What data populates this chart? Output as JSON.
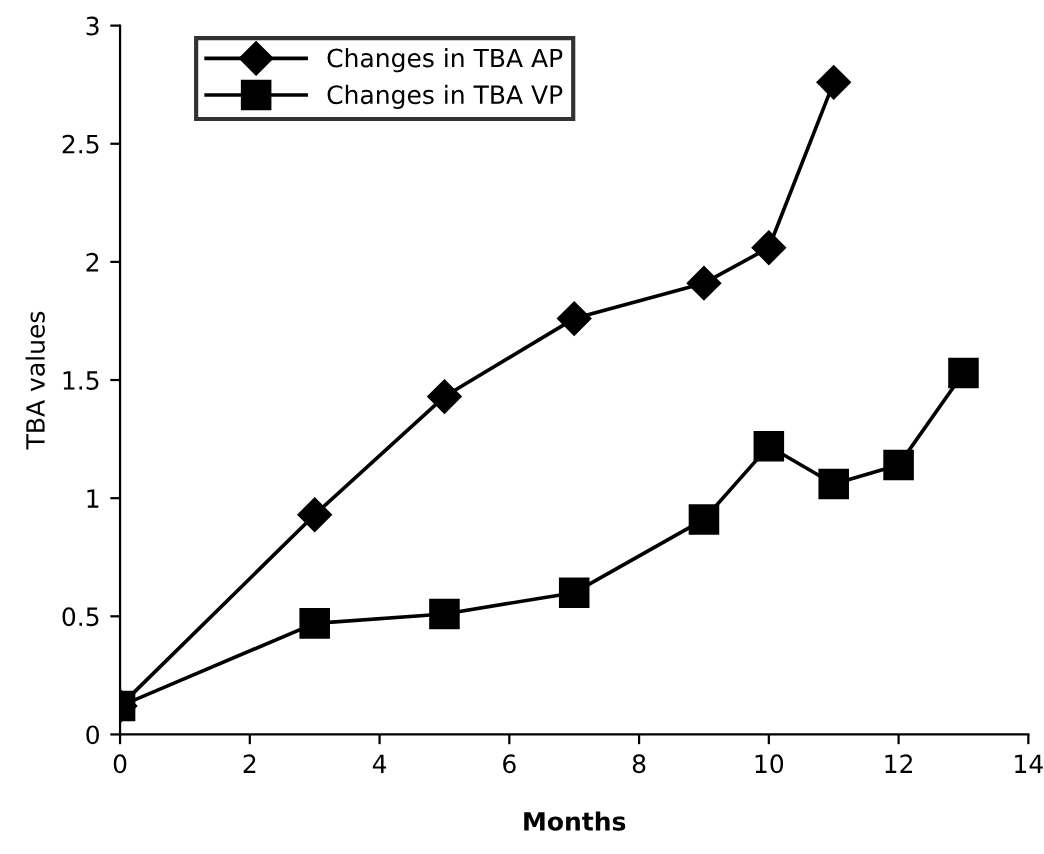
{
  "chart_data": {
    "type": "line",
    "xlabel": "Months",
    "ylabel": "TBA values",
    "series": [
      {
        "name": "Changes in TBA AP",
        "color": "#000000",
        "marker": "diamond",
        "x": [
          0,
          3,
          5,
          7,
          9,
          10,
          11
        ],
        "values": [
          0.12,
          0.93,
          1.43,
          1.76,
          1.91,
          2.06,
          2.76
        ]
      },
      {
        "name": "Changes in TBA VP",
        "color": "#000000",
        "marker": "square",
        "x": [
          0,
          3,
          5,
          7,
          9,
          10,
          11,
          12,
          13
        ],
        "values": [
          0.12,
          0.47,
          0.51,
          0.6,
          0.91,
          1.22,
          1.06,
          1.14,
          1.53
        ]
      }
    ],
    "xlim": [
      0,
      14
    ],
    "xticks": [
      0,
      2,
      4,
      6,
      8,
      10,
      12,
      14
    ],
    "ylim": [
      0,
      3
    ],
    "yticks": [
      0,
      0.5,
      1,
      1.5,
      2,
      2.5,
      3
    ],
    "grid": false,
    "legend": "top left",
    "line_style": "solid"
  }
}
